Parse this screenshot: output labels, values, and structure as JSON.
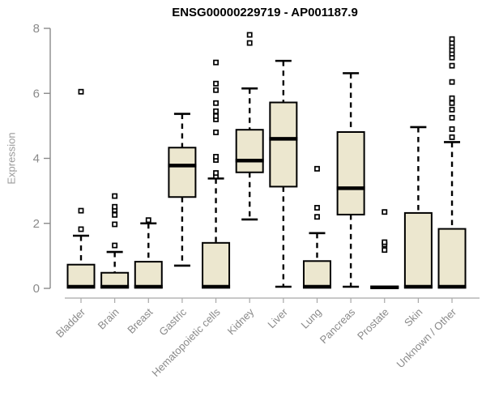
{
  "chart_data": {
    "type": "boxplot",
    "title": "ENSG00000229719 - AP001187.9",
    "ylabel": "Expression",
    "xlabel": "",
    "ylim": [
      0,
      8
    ],
    "yticks": [
      0,
      2,
      4,
      6,
      8
    ],
    "grid": false,
    "legend": "none",
    "categories": [
      "Bladder",
      "Brain",
      "Breast",
      "Gastric",
      "Hematopoietic cells",
      "Kidney",
      "Liver",
      "Lung",
      "Pancreas",
      "Prostate",
      "Skin",
      "Unknown / Other"
    ],
    "series": [
      {
        "name": "Bladder",
        "whisker_low": 0.02,
        "q1": 0.02,
        "median": 0.05,
        "q3": 0.73,
        "whisker_high": 1.62,
        "outliers": [
          1.82,
          2.39,
          6.05
        ]
      },
      {
        "name": "Brain",
        "whisker_low": 0.02,
        "q1": 0.02,
        "median": 0.05,
        "q3": 0.48,
        "whisker_high": 1.12,
        "outliers": [
          1.32,
          1.97,
          2.26,
          2.41,
          2.51,
          2.84
        ]
      },
      {
        "name": "Breast",
        "whisker_low": 0.02,
        "q1": 0.02,
        "median": 0.05,
        "q3": 0.82,
        "whisker_high": 2.0,
        "outliers": [
          2.1
        ]
      },
      {
        "name": "Gastric",
        "whisker_low": 0.7,
        "q1": 2.81,
        "median": 3.78,
        "q3": 4.33,
        "whisker_high": 5.37,
        "outliers": []
      },
      {
        "name": "Hematopoietic cells",
        "whisker_low": 0.02,
        "q1": 0.02,
        "median": 0.05,
        "q3": 1.4,
        "whisker_high": 3.38,
        "outliers": [
          3.45,
          3.55,
          3.95,
          4.05,
          4.8,
          5.2,
          5.3,
          5.45,
          5.7,
          6.1,
          6.3,
          6.95
        ]
      },
      {
        "name": "Kidney",
        "whisker_low": 2.12,
        "q1": 3.57,
        "median": 3.93,
        "q3": 4.88,
        "whisker_high": 6.15,
        "outliers": [
          7.55,
          7.8
        ]
      },
      {
        "name": "Liver",
        "whisker_low": 0.05,
        "q1": 3.13,
        "median": 4.6,
        "q3": 5.72,
        "whisker_high": 7.0,
        "outliers": []
      },
      {
        "name": "Lung",
        "whisker_low": 0.02,
        "q1": 0.02,
        "median": 0.05,
        "q3": 0.84,
        "whisker_high": 1.7,
        "outliers": [
          2.2,
          2.48,
          3.68
        ]
      },
      {
        "name": "Pancreas",
        "whisker_low": 0.05,
        "q1": 2.27,
        "median": 3.08,
        "q3": 4.81,
        "whisker_high": 6.62,
        "outliers": []
      },
      {
        "name": "Prostate",
        "whisker_low": 0.02,
        "q1": 0.02,
        "median": 0.03,
        "q3": 0.06,
        "whisker_high": 0.06,
        "outliers": [
          1.18,
          1.35,
          1.42,
          2.35
        ]
      },
      {
        "name": "Skin",
        "whisker_low": 0.02,
        "q1": 0.02,
        "median": 0.05,
        "q3": 2.32,
        "whisker_high": 4.96,
        "outliers": []
      },
      {
        "name": "Unknown / Other",
        "whisker_low": 0.02,
        "q1": 0.02,
        "median": 0.05,
        "q3": 1.83,
        "whisker_high": 4.5,
        "outliers": [
          4.65,
          4.9,
          5.25,
          5.5,
          5.7,
          5.85,
          6.35,
          6.85,
          7.1,
          7.22,
          7.33,
          7.45,
          7.55,
          7.67
        ]
      }
    ],
    "colors": {
      "box_fill": "#ECE7CF",
      "box_stroke": "#000000",
      "median": "#000000",
      "whisker": "#000000",
      "outlier_fill": "#ffffff",
      "outlier_stroke": "#000000",
      "axis": "#8a8a8a",
      "x_axis_line": "#a8a8a8",
      "tick_label": "#8a8a8a",
      "title": "#000000"
    }
  }
}
